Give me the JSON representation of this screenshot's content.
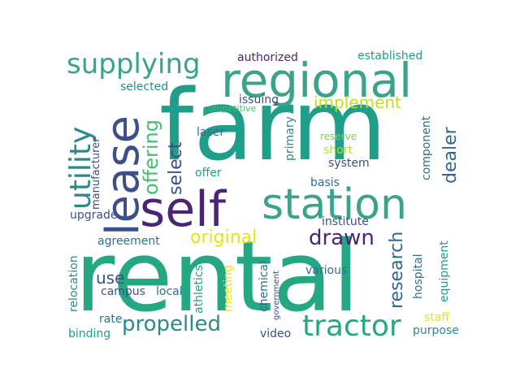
{
  "palette": {
    "c1": "#3aa38a",
    "c2": "#2c8a8c",
    "c3": "#2e6e8e",
    "c4": "#3c4f8b",
    "c5": "#482575",
    "c6": "#24a884",
    "c7": "#43bf71",
    "c8": "#7ad151",
    "c9": "#bddf26",
    "c10": "#e4e419",
    "c11": "#31688e",
    "c12": "#1f9e89"
  },
  "words": [
    {
      "key": "farm",
      "text": "farm"
    },
    {
      "key": "rental",
      "text": "rental"
    },
    {
      "key": "regional",
      "text": "regional"
    },
    {
      "key": "station",
      "text": "station"
    },
    {
      "key": "self",
      "text": "self"
    },
    {
      "key": "lease",
      "text": "lease"
    },
    {
      "key": "supplying",
      "text": "supplying"
    },
    {
      "key": "utility",
      "text": "utility"
    },
    {
      "key": "tractor",
      "text": "tractor"
    },
    {
      "key": "propelled",
      "text": "propelled"
    },
    {
      "key": "drawn",
      "text": "drawn"
    },
    {
      "key": "original",
      "text": "original"
    },
    {
      "key": "offering",
      "text": "offering"
    },
    {
      "key": "dealer",
      "text": "dealer"
    },
    {
      "key": "research",
      "text": "research"
    },
    {
      "key": "implement",
      "text": "implement"
    },
    {
      "key": "select",
      "text": "select"
    },
    {
      "key": "use",
      "text": "use"
    },
    {
      "key": "authorized",
      "text": "authorized"
    },
    {
      "key": "established",
      "text": "established"
    },
    {
      "key": "selected",
      "text": "selected"
    },
    {
      "key": "issuing",
      "text": "issuing"
    },
    {
      "key": "competitive",
      "text": "competitive"
    },
    {
      "key": "manufacturer",
      "text": "manufacturer"
    },
    {
      "key": "laser",
      "text": "laser"
    },
    {
      "key": "primary",
      "text": "primary"
    },
    {
      "key": "reserve",
      "text": "reserve"
    },
    {
      "key": "short",
      "text": "short"
    },
    {
      "key": "system",
      "text": "system"
    },
    {
      "key": "component",
      "text": "component"
    },
    {
      "key": "offer",
      "text": "offer"
    },
    {
      "key": "basis",
      "text": "basis"
    },
    {
      "key": "upgrade",
      "text": "upgrade"
    },
    {
      "key": "institute",
      "text": "institute"
    },
    {
      "key": "agreement",
      "text": "agreement"
    },
    {
      "key": "hospital",
      "text": "hospital"
    },
    {
      "key": "equipment",
      "text": "equipment"
    },
    {
      "key": "relocation",
      "text": "relocation"
    },
    {
      "key": "campus",
      "text": "campus"
    },
    {
      "key": "local",
      "text": "local"
    },
    {
      "key": "athletics",
      "text": "athletics"
    },
    {
      "key": "meeting",
      "text": "meeting"
    },
    {
      "key": "chemical",
      "text": "chemical"
    },
    {
      "key": "government",
      "text": "government"
    },
    {
      "key": "various",
      "text": "various"
    },
    {
      "key": "rate",
      "text": "rate"
    },
    {
      "key": "binding",
      "text": "binding"
    },
    {
      "key": "video",
      "text": "video"
    },
    {
      "key": "staff",
      "text": "staff"
    },
    {
      "key": "purpose",
      "text": "purpose"
    }
  ]
}
